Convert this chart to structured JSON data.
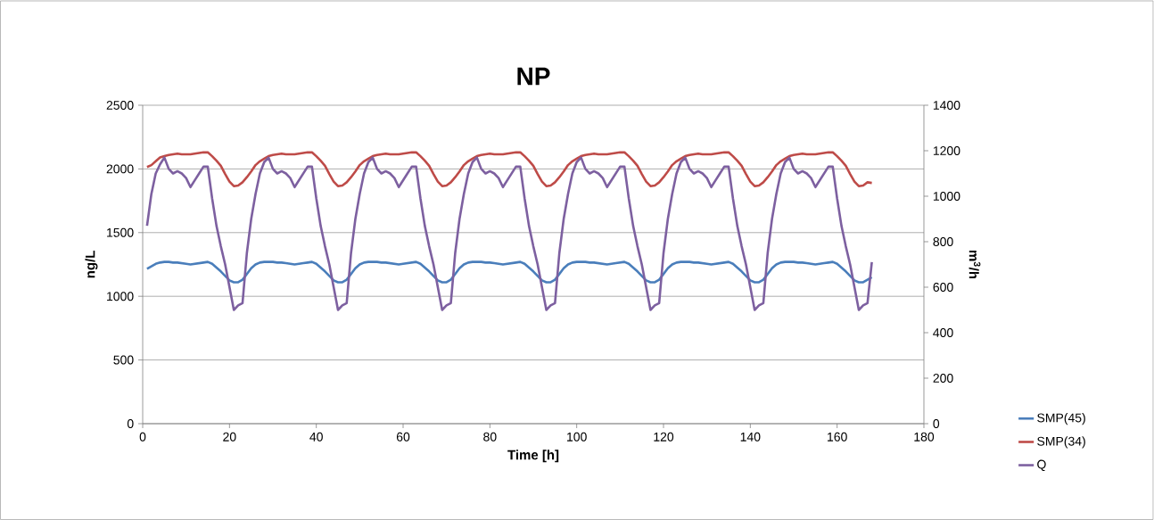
{
  "chart_data": {
    "type": "line",
    "title": "NP",
    "xlabel": "Time [h]",
    "ylabel": "ng/L",
    "y2label": "m$^{3}$/h",
    "x": [
      1,
      2,
      3,
      4,
      5,
      6,
      7,
      8,
      9,
      10,
      11,
      12,
      13,
      14,
      15,
      16,
      17,
      18,
      19,
      20,
      21,
      22,
      23,
      24,
      25,
      26,
      27,
      28,
      29,
      30,
      31,
      32,
      33,
      34,
      35,
      36,
      37,
      38,
      39,
      40,
      41,
      42,
      43,
      44,
      45,
      46,
      47,
      48,
      49,
      50,
      51,
      52,
      53,
      54,
      55,
      56,
      57,
      58,
      59,
      60,
      61,
      62,
      63,
      64,
      65,
      66,
      67,
      68,
      69,
      70,
      71,
      72,
      73,
      74,
      75,
      76,
      77,
      78,
      79,
      80,
      81,
      82,
      83,
      84,
      85,
      86,
      87,
      88,
      89,
      90,
      91,
      92,
      93,
      94,
      95,
      96,
      97,
      98,
      99,
      100,
      101,
      102,
      103,
      104,
      105,
      106,
      107,
      108,
      109,
      110,
      111,
      112,
      113,
      114,
      115,
      116,
      117,
      118,
      119,
      120,
      121,
      122,
      123,
      124,
      125,
      126,
      127,
      128,
      129,
      130,
      131,
      132,
      133,
      134,
      135,
      136,
      137,
      138,
      139,
      140,
      141,
      142,
      143,
      144,
      145,
      146,
      147,
      148,
      149,
      150,
      151,
      152,
      153,
      154,
      155,
      156,
      157,
      158,
      159,
      160,
      161,
      162,
      163,
      164,
      165,
      166,
      167,
      168
    ],
    "series": [
      {
        "name": "SMP(45)",
        "color": "#4a7ebb",
        "values": [
          1215,
          1235,
          1255,
          1265,
          1270,
          1270,
          1265,
          1265,
          1260,
          1255,
          1250,
          1255,
          1260,
          1265,
          1270,
          1255,
          1225,
          1195,
          1160,
          1125,
          1110,
          1110,
          1130,
          1175,
          1220,
          1250,
          1265,
          1270,
          1270,
          1270,
          1265,
          1265,
          1260,
          1255,
          1250,
          1255,
          1260,
          1265,
          1270,
          1255,
          1225,
          1195,
          1160,
          1125,
          1110,
          1110,
          1130,
          1175,
          1220,
          1250,
          1265,
          1270,
          1270,
          1270,
          1265,
          1265,
          1260,
          1255,
          1250,
          1255,
          1260,
          1265,
          1270,
          1255,
          1225,
          1195,
          1160,
          1125,
          1110,
          1110,
          1130,
          1175,
          1220,
          1250,
          1265,
          1270,
          1270,
          1270,
          1265,
          1265,
          1260,
          1255,
          1250,
          1255,
          1260,
          1265,
          1270,
          1255,
          1225,
          1195,
          1160,
          1125,
          1110,
          1110,
          1130,
          1175,
          1220,
          1250,
          1265,
          1270,
          1270,
          1270,
          1265,
          1265,
          1260,
          1255,
          1250,
          1255,
          1260,
          1265,
          1270,
          1255,
          1225,
          1195,
          1160,
          1125,
          1110,
          1110,
          1130,
          1175,
          1220,
          1250,
          1265,
          1270,
          1270,
          1270,
          1265,
          1265,
          1260,
          1255,
          1250,
          1255,
          1260,
          1265,
          1270,
          1255,
          1225,
          1195,
          1160,
          1125,
          1110,
          1110,
          1130,
          1175,
          1220,
          1250,
          1265,
          1270,
          1270,
          1270,
          1265,
          1265,
          1260,
          1255,
          1250,
          1255,
          1260,
          1265,
          1270,
          1255,
          1225,
          1195,
          1160,
          1125,
          1110,
          1110,
          1130,
          1150
        ]
      },
      {
        "name": "SMP(34)",
        "color": "#be4b48",
        "values": [
          2015,
          2030,
          2060,
          2090,
          2100,
          2110,
          2115,
          2120,
          2115,
          2115,
          2115,
          2120,
          2125,
          2130,
          2130,
          2100,
          2065,
          2025,
          1960,
          1900,
          1865,
          1870,
          1895,
          1935,
          1980,
          2030,
          2060,
          2080,
          2100,
          2110,
          2115,
          2120,
          2115,
          2115,
          2115,
          2120,
          2125,
          2130,
          2130,
          2100,
          2065,
          2025,
          1960,
          1900,
          1865,
          1870,
          1895,
          1935,
          1980,
          2030,
          2060,
          2080,
          2100,
          2110,
          2115,
          2120,
          2115,
          2115,
          2115,
          2120,
          2125,
          2130,
          2130,
          2100,
          2065,
          2025,
          1960,
          1900,
          1865,
          1870,
          1895,
          1935,
          1980,
          2030,
          2060,
          2080,
          2100,
          2110,
          2115,
          2120,
          2115,
          2115,
          2115,
          2120,
          2125,
          2130,
          2130,
          2100,
          2065,
          2025,
          1960,
          1900,
          1865,
          1870,
          1895,
          1935,
          1980,
          2030,
          2060,
          2080,
          2100,
          2110,
          2115,
          2120,
          2115,
          2115,
          2115,
          2120,
          2125,
          2130,
          2130,
          2100,
          2065,
          2025,
          1960,
          1900,
          1865,
          1870,
          1895,
          1935,
          1980,
          2030,
          2060,
          2080,
          2100,
          2110,
          2115,
          2120,
          2115,
          2115,
          2115,
          2120,
          2125,
          2130,
          2130,
          2100,
          2065,
          2025,
          1960,
          1900,
          1865,
          1870,
          1895,
          1935,
          1980,
          2030,
          2060,
          2080,
          2100,
          2110,
          2115,
          2120,
          2115,
          2115,
          2115,
          2120,
          2125,
          2130,
          2130,
          2100,
          2065,
          2025,
          1960,
          1900,
          1865,
          1870,
          1895,
          1890
        ]
      },
      {
        "name": "Q",
        "color": "#7d60a0",
        "axis": "y2",
        "values": [
          870,
          1010,
          1100,
          1140,
          1170,
          1120,
          1100,
          1110,
          1100,
          1080,
          1040,
          1070,
          1100,
          1130,
          1130,
          990,
          870,
          780,
          700,
          600,
          500,
          520,
          530,
          750,
          900,
          1010,
          1100,
          1150,
          1170,
          1120,
          1100,
          1110,
          1100,
          1080,
          1040,
          1070,
          1100,
          1130,
          1130,
          990,
          870,
          780,
          700,
          600,
          500,
          520,
          530,
          750,
          900,
          1010,
          1100,
          1150,
          1170,
          1120,
          1100,
          1110,
          1100,
          1080,
          1040,
          1070,
          1100,
          1130,
          1130,
          990,
          870,
          780,
          700,
          600,
          500,
          520,
          530,
          750,
          900,
          1010,
          1100,
          1150,
          1170,
          1120,
          1100,
          1110,
          1100,
          1080,
          1040,
          1070,
          1100,
          1130,
          1130,
          990,
          870,
          780,
          700,
          600,
          500,
          520,
          530,
          750,
          900,
          1010,
          1100,
          1150,
          1170,
          1120,
          1100,
          1110,
          1100,
          1080,
          1040,
          1070,
          1100,
          1130,
          1130,
          990,
          870,
          780,
          700,
          600,
          500,
          520,
          530,
          750,
          900,
          1010,
          1100,
          1150,
          1170,
          1120,
          1100,
          1110,
          1100,
          1080,
          1040,
          1070,
          1100,
          1130,
          1130,
          990,
          870,
          780,
          700,
          600,
          500,
          520,
          530,
          750,
          900,
          1010,
          1100,
          1150,
          1170,
          1120,
          1100,
          1110,
          1100,
          1080,
          1040,
          1070,
          1100,
          1130,
          1130,
          990,
          870,
          780,
          700,
          600,
          500,
          520,
          530,
          710
        ]
      }
    ],
    "xlim": [
      0,
      180
    ],
    "xticks": [
      0,
      20,
      40,
      60,
      80,
      100,
      120,
      140,
      160,
      180
    ],
    "ylim": [
      0,
      2500
    ],
    "yticks": [
      0,
      500,
      1000,
      1500,
      2000,
      2500
    ],
    "y2lim": [
      0,
      1400
    ],
    "y2ticks": [
      0,
      200,
      400,
      600,
      800,
      1000,
      1200,
      1400
    ],
    "grid": "y",
    "legend": "bottom right"
  }
}
